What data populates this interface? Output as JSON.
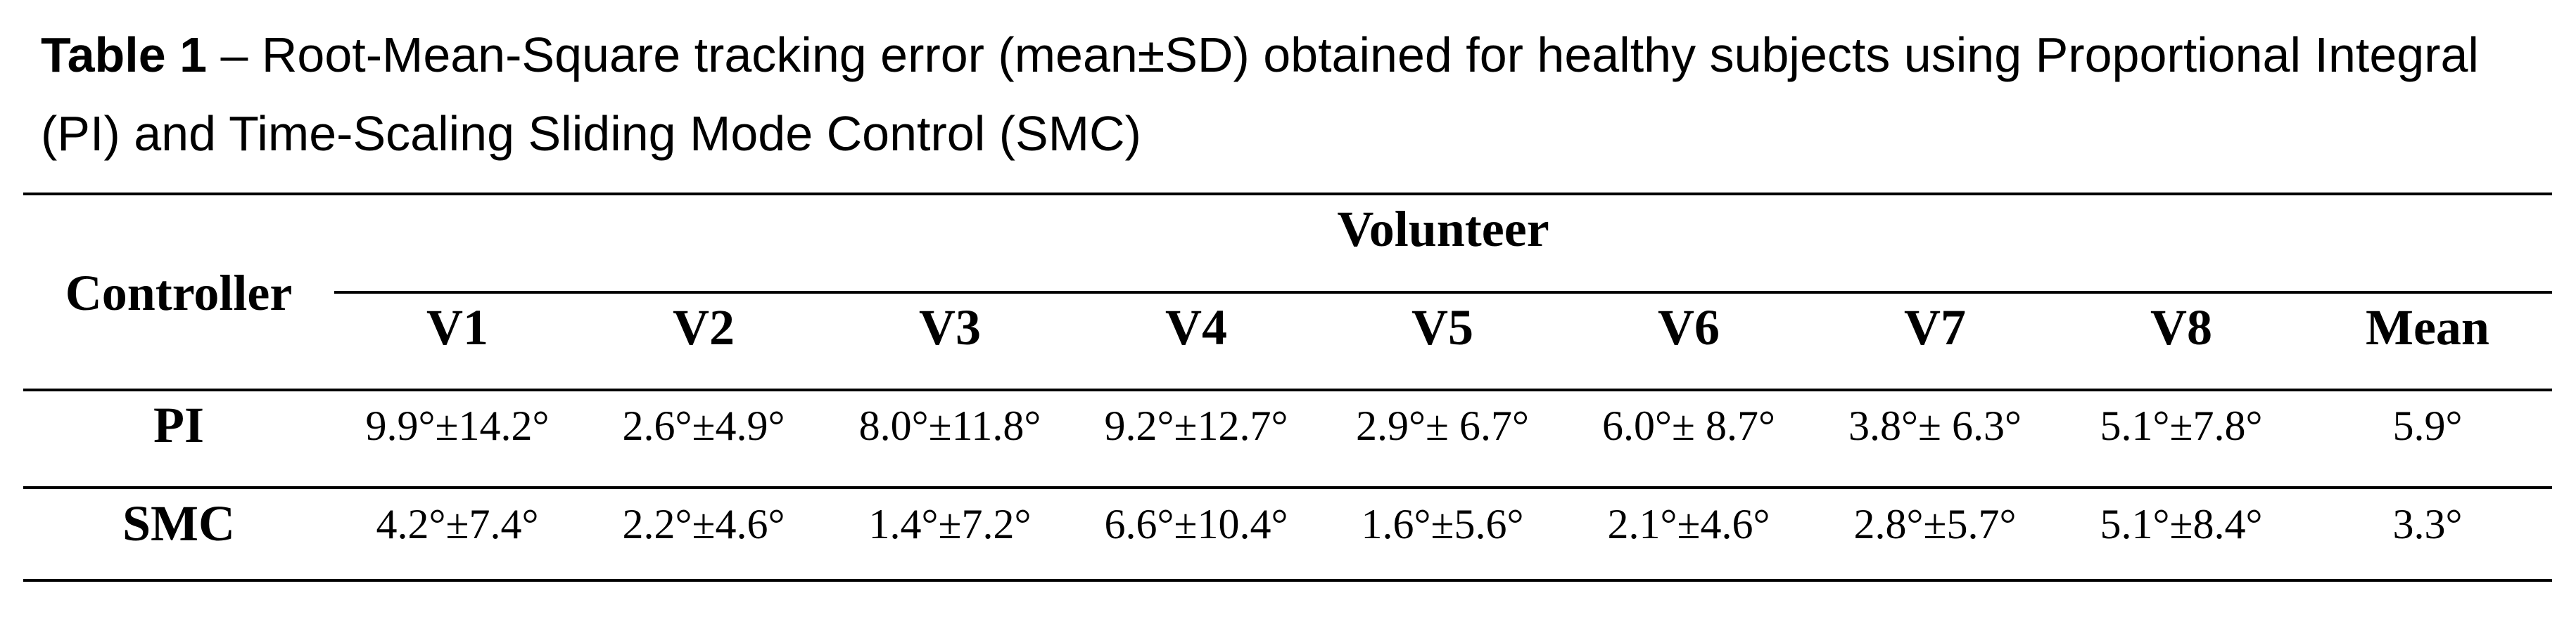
{
  "caption": {
    "label": "Table 1",
    "text": " – Root-Mean-Square tracking error (mean±SD) obtained for healthy subjects using Proportional Integral (PI) and Time-Scaling Sliding Mode Control (SMC)"
  },
  "table": {
    "row_header": "Controller",
    "group_header": "Volunteer",
    "columns": [
      "V1",
      "V2",
      "V3",
      "V4",
      "V5",
      "V6",
      "V7",
      "V8",
      "Mean"
    ],
    "rows": [
      {
        "controller": "PI",
        "values": [
          "9.9°±14.2°",
          "2.6°±4.9°",
          "8.0°±11.8°",
          "9.2°±12.7°",
          "2.9°± 6.7°",
          "6.0°± 8.7°",
          "3.8°± 6.3°",
          "5.1°±7.8°",
          "5.9°"
        ]
      },
      {
        "controller": "SMC",
        "values": [
          "4.2°±7.4°",
          "2.2°±4.6°",
          "1.4°±7.2°",
          "6.6°±10.4°",
          "1.6°±5.6°",
          "2.1°±4.6°",
          "2.8°±5.7°",
          "5.1°±8.4°",
          "3.3°"
        ]
      }
    ]
  }
}
